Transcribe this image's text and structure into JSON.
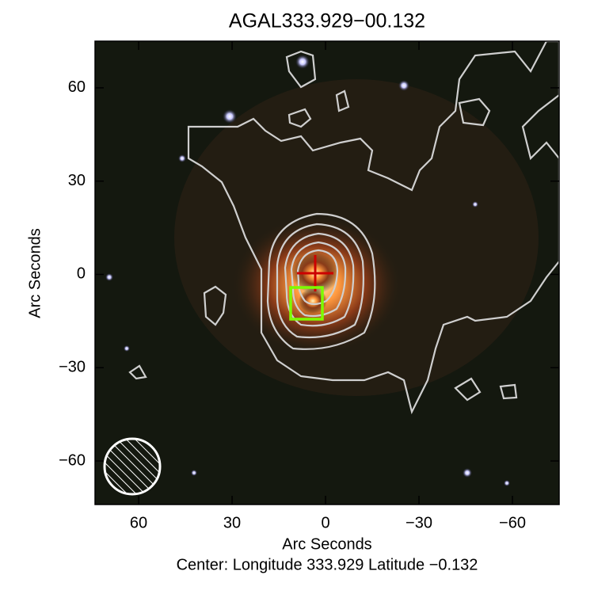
{
  "chart_data": {
    "type": "image",
    "title": "AGAL333.929−00.132",
    "x_label": "Arc Seconds",
    "y_label": "Arc Seconds",
    "subtitle": "Center:  Longitude 333.929 Latitude −0.132",
    "xlim": [
      74,
      -75
    ],
    "ylim": [
      -74,
      75
    ],
    "xticks": [
      60,
      30,
      0,
      {
        "value": -30,
        "label": "−30"
      },
      {
        "value": -60,
        "label": "−60"
      }
    ],
    "yticks": [
      {
        "value": -60,
        "label": "−60"
      },
      {
        "value": -30,
        "label": "−30"
      },
      0,
      30,
      60
    ]
  }
}
